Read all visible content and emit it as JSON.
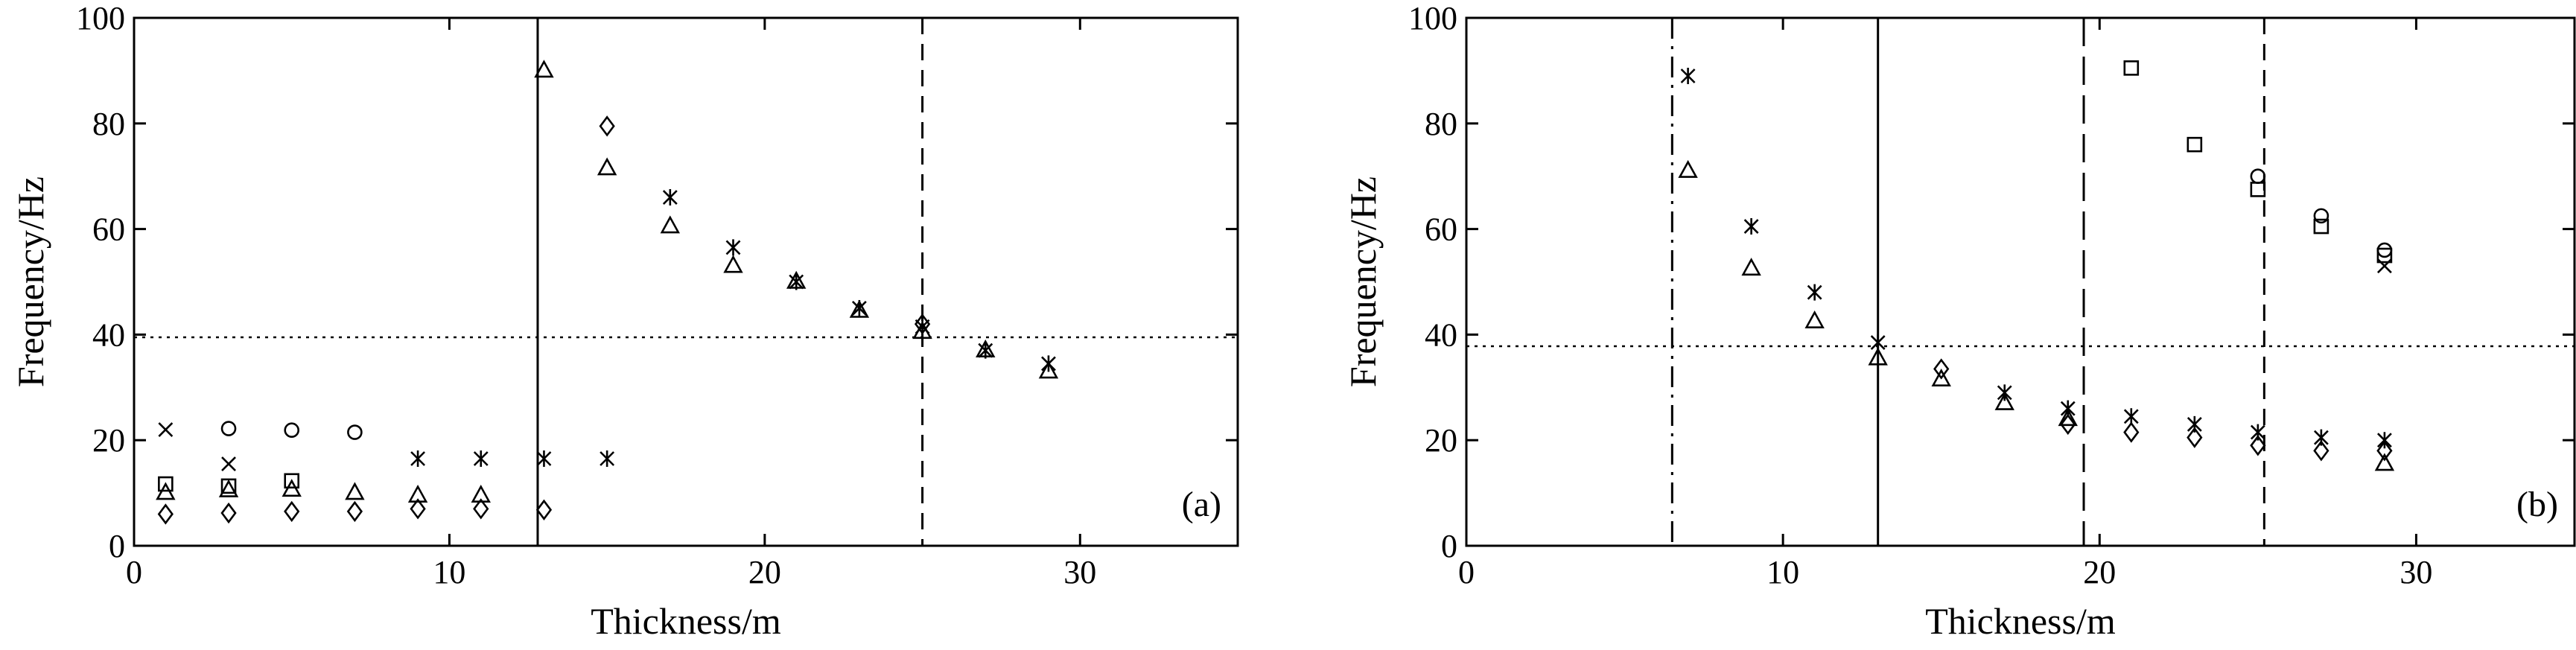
{
  "chart_data": [
    {
      "id": "a",
      "type": "scatter",
      "xlabel": "Thickness/m",
      "ylabel": "Frequency/Hz",
      "xlim": [
        0,
        35
      ],
      "ylim": [
        0,
        100
      ],
      "xticks": [
        0,
        10,
        20,
        30
      ],
      "yticks": [
        0,
        20,
        40,
        60,
        80,
        100
      ],
      "panel_label": "(a)",
      "grid": false,
      "legend": "none",
      "hlines": [
        {
          "y": 39.5,
          "style": "dotted"
        }
      ],
      "vlines": [
        {
          "x": 12.8,
          "style": "solid"
        },
        {
          "x": 25,
          "style": "dashed"
        }
      ],
      "series": [
        {
          "marker": "circle",
          "points": [
            [
              3,
              22.2
            ],
            [
              5,
              21.9
            ],
            [
              7,
              21.5
            ]
          ]
        },
        {
          "marker": "x",
          "points": [
            [
              1,
              22
            ],
            [
              3,
              15.5
            ]
          ]
        },
        {
          "marker": "square",
          "points": [
            [
              1,
              11.7
            ],
            [
              3,
              11.3
            ],
            [
              5,
              12.3
            ]
          ]
        },
        {
          "marker": "triangle",
          "points": [
            [
              1,
              10
            ],
            [
              3,
              10.5
            ],
            [
              5,
              10.6
            ],
            [
              7,
              10
            ],
            [
              9,
              9.5
            ],
            [
              11,
              9.5
            ],
            [
              13,
              90
            ],
            [
              15,
              71.5
            ],
            [
              17,
              60.5
            ],
            [
              19,
              53
            ],
            [
              21,
              50
            ],
            [
              23,
              44.5
            ],
            [
              25,
              40.5
            ],
            [
              27,
              37
            ],
            [
              29,
              33
            ]
          ]
        },
        {
          "marker": "diamond",
          "points": [
            [
              1,
              6
            ],
            [
              3,
              6.2
            ],
            [
              5,
              6.5
            ],
            [
              7,
              6.5
            ],
            [
              9,
              7
            ],
            [
              11,
              7
            ],
            [
              13,
              6.8
            ],
            [
              15,
              79.5
            ],
            [
              25,
              42
            ]
          ]
        },
        {
          "marker": "asterisk",
          "points": [
            [
              9,
              16.5
            ],
            [
              11,
              16.5
            ],
            [
              13,
              16.5
            ],
            [
              15,
              16.5
            ],
            [
              17,
              66
            ],
            [
              19,
              56.5
            ],
            [
              21,
              50
            ],
            [
              23,
              45
            ],
            [
              25,
              41.5
            ],
            [
              27,
              37
            ],
            [
              29,
              34.5
            ]
          ]
        }
      ]
    },
    {
      "id": "b",
      "type": "scatter",
      "xlabel": "Thickness/m",
      "ylabel": "Frequency/Hz",
      "xlim": [
        0,
        35
      ],
      "ylim": [
        0,
        100
      ],
      "xticks": [
        0,
        10,
        20,
        30
      ],
      "yticks": [
        0,
        20,
        40,
        60,
        80,
        100
      ],
      "panel_label": "(b)",
      "grid": false,
      "legend": "none",
      "hlines": [
        {
          "y": 37.8,
          "style": "dotted"
        }
      ],
      "vlines": [
        {
          "x": 6.5,
          "style": "dashdot"
        },
        {
          "x": 13,
          "style": "solid"
        },
        {
          "x": 19.5,
          "style": "longdash"
        },
        {
          "x": 25.2,
          "style": "dashed"
        }
      ],
      "series": [
        {
          "marker": "circle",
          "points": [
            [
              25,
              70
            ],
            [
              27,
              62.5
            ],
            [
              29,
              56
            ]
          ]
        },
        {
          "marker": "x",
          "points": [
            [
              29,
              53
            ]
          ]
        },
        {
          "marker": "square",
          "points": [
            [
              21,
              90.5
            ],
            [
              23,
              76
            ],
            [
              25,
              67.5
            ],
            [
              27,
              60.5
            ],
            [
              29,
              55
            ]
          ]
        },
        {
          "marker": "triangle",
          "points": [
            [
              7,
              71
            ],
            [
              9,
              52.5
            ],
            [
              11,
              42.5
            ],
            [
              13,
              35.5
            ],
            [
              15,
              31.5
            ],
            [
              17,
              27
            ],
            [
              19,
              24
            ],
            [
              29,
              15.5
            ]
          ]
        },
        {
          "marker": "diamond",
          "points": [
            [
              15,
              33.5
            ],
            [
              19,
              23
            ],
            [
              21,
              21.5
            ],
            [
              23,
              20.5
            ],
            [
              25,
              19
            ],
            [
              27,
              18
            ],
            [
              29,
              18
            ]
          ]
        },
        {
          "marker": "asterisk",
          "points": [
            [
              7,
              89
            ],
            [
              9,
              60.5
            ],
            [
              11,
              48
            ],
            [
              13,
              38.5
            ],
            [
              17,
              29
            ],
            [
              19,
              26
            ],
            [
              21,
              24.5
            ],
            [
              23,
              23
            ],
            [
              25,
              21.5
            ],
            [
              27,
              20.5
            ],
            [
              29,
              20
            ]
          ]
        }
      ]
    }
  ]
}
